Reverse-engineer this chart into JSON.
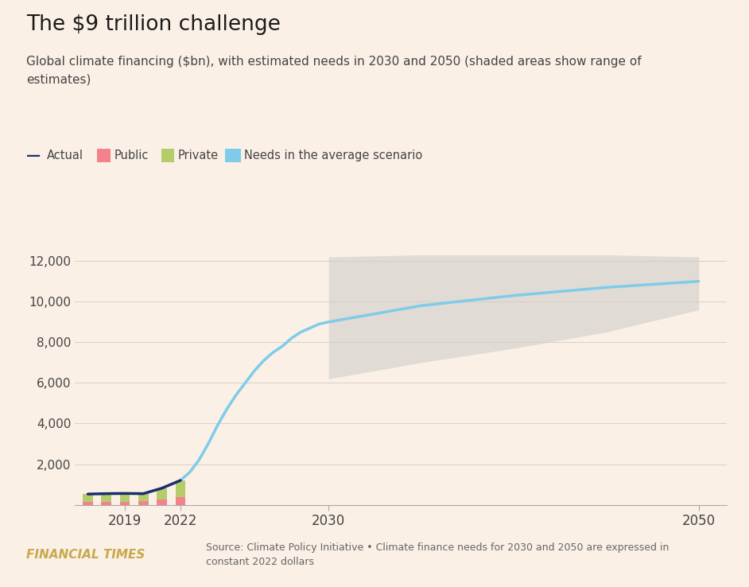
{
  "title": "The $9 trillion challenge",
  "subtitle": "Global climate financing ($bn), with estimated needs in 2030 and 2050 (shaded areas show range of\nestimates)",
  "background_color": "#faf0e6",
  "title_color": "#1a1a1a",
  "subtitle_color": "#444444",
  "source_text": "Source: Climate Policy Initiative • Climate finance needs for 2030 and 2050 are expressed in\nconstant 2022 dollars",
  "ft_label": "FINANCIAL TIMES",
  "bar_years": [
    2017,
    2018,
    2019,
    2020,
    2021,
    2022
  ],
  "public_values": [
    160,
    160,
    160,
    170,
    250,
    380
  ],
  "private_values": [
    370,
    390,
    400,
    380,
    570,
    820
  ],
  "actual_line": {
    "x": [
      2017,
      2018,
      2019,
      2020,
      2021,
      2022
    ],
    "y": [
      530,
      550,
      560,
      550,
      820,
      1200
    ]
  },
  "needs_line": {
    "x": [
      2022,
      2022.5,
      2023,
      2023.5,
      2024,
      2024.5,
      2025,
      2025.5,
      2026,
      2026.5,
      2027,
      2027.5,
      2028,
      2028.5,
      2029,
      2029.5,
      2030,
      2035,
      2040,
      2045,
      2050
    ],
    "y": [
      1200,
      1600,
      2200,
      3000,
      3900,
      4700,
      5400,
      6000,
      6600,
      7100,
      7500,
      7800,
      8200,
      8500,
      8700,
      8900,
      9000,
      9800,
      10300,
      10700,
      11000
    ]
  },
  "range_shade": {
    "x": [
      2030,
      2035,
      2040,
      2045,
      2050
    ],
    "y_low": [
      6200,
      7000,
      7700,
      8500,
      9600
    ],
    "y_high": [
      12200,
      12300,
      12300,
      12300,
      12200
    ]
  },
  "colors": {
    "public": "#f4828c",
    "private": "#b5cc6a",
    "actual": "#1a2e6e",
    "needs": "#7eccea",
    "shade": "#d0cdc8",
    "axis": "#999999"
  },
  "ylim": [
    0,
    13000
  ],
  "yticks": [
    0,
    2000,
    4000,
    6000,
    8000,
    10000,
    12000
  ],
  "xlim_left": 2016.3,
  "xlim_right": 2051.5,
  "xtick_positions": [
    2019,
    2022,
    2030,
    2050
  ],
  "xtick_labels": [
    "2019",
    "2022",
    "2030",
    "2050"
  ],
  "legend_labels": [
    "Actual",
    "Public",
    "Private",
    "Needs in the average scenario"
  ]
}
